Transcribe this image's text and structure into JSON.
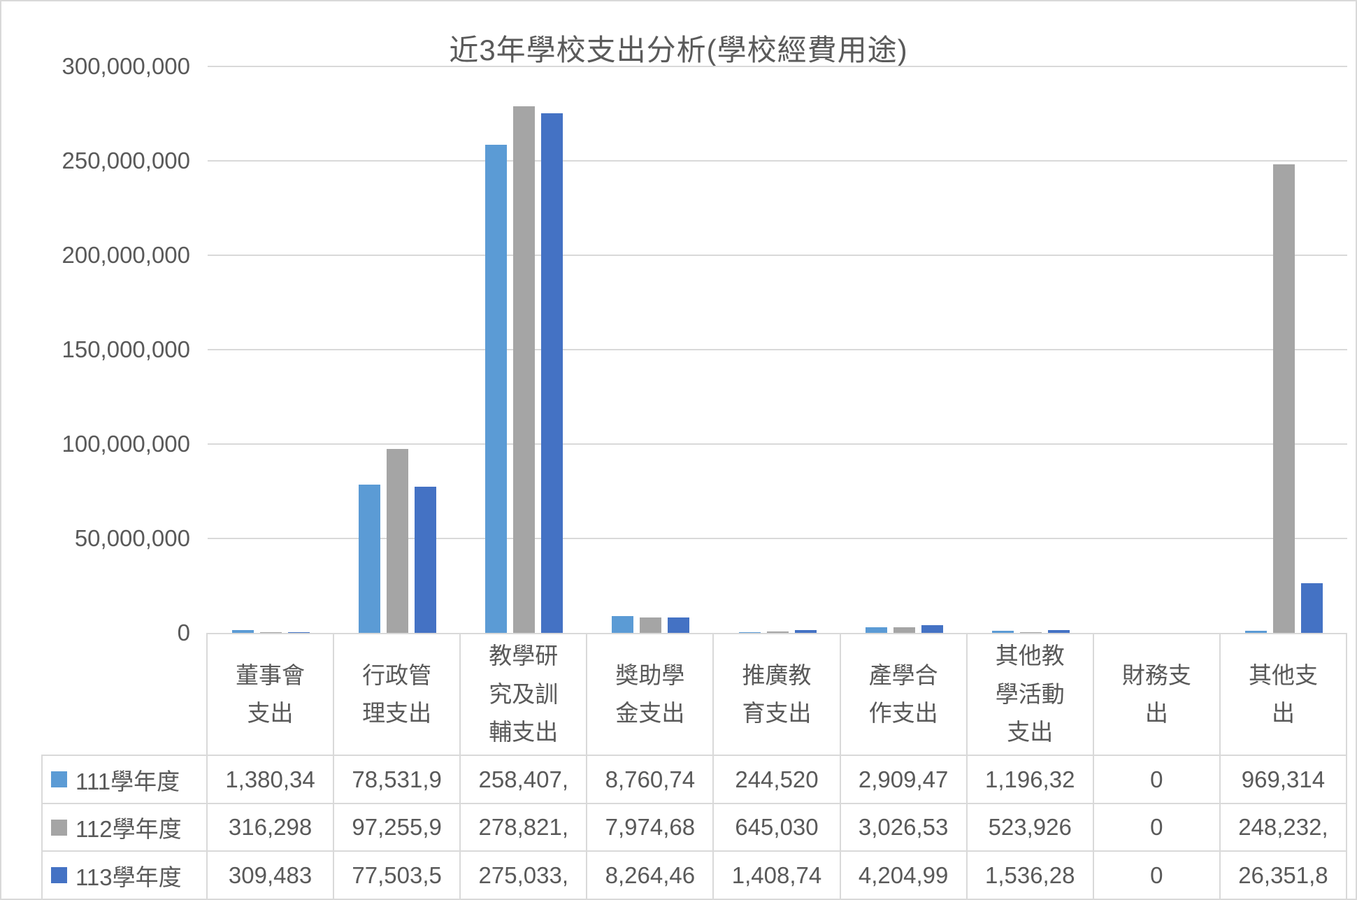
{
  "title": "近3年學校支出分析(學校經費用途)",
  "colors": {
    "series_111": "#5B9BD5",
    "series_112": "#A5A5A5",
    "series_113": "#4472C4",
    "text": "#595959",
    "gridline": "#D9D9D9",
    "background": "#FFFFFF"
  },
  "chart_data": {
    "type": "bar",
    "title": "近3年學校支出分析(學校經費用途)",
    "grid": true,
    "legend_position": "table-left",
    "y_axis": {
      "min": 0,
      "max": 300000000,
      "tick_step": 50000000,
      "tick_labels": [
        "300,000,000",
        "250,000,000",
        "200,000,000",
        "150,000,000",
        "100,000,000",
        "50,000,000",
        "0"
      ]
    },
    "categories": [
      "董事會支出",
      "行政管理支出",
      "教學研究及訓輔支出",
      "獎助學金支出",
      "推廣教育支出",
      "產學合作支出",
      "其他教學活動支出",
      "財務支出",
      "其他支出"
    ],
    "category_display": [
      "董事會\n支出",
      "行政管\n理支出",
      "教學研\n究及訓\n輔支出",
      "獎助學\n金支出",
      "推廣教\n育支出",
      "產學合\n作支出",
      "其他教\n學活動\n支出",
      "財務支\n出",
      "其他支\n出"
    ],
    "series": [
      {
        "name": "111學年度",
        "color": "#5B9BD5",
        "values": [
          1380340,
          78531900,
          258407000,
          8760740,
          244520,
          2909470,
          1196320,
          0,
          969314
        ],
        "display": [
          "1,380,34",
          "78,531,9",
          "258,407,",
          "8,760,74",
          "244,520",
          "2,909,47",
          "1,196,32",
          "0",
          "969,314"
        ]
      },
      {
        "name": "112學年度",
        "color": "#A5A5A5",
        "values": [
          316298,
          97255900,
          278821000,
          7974680,
          645030,
          3026530,
          523926,
          0,
          248232000
        ],
        "display": [
          "316,298",
          "97,255,9",
          "278,821,",
          "7,974,68",
          "645,030",
          "3,026,53",
          "523,926",
          "0",
          "248,232,"
        ]
      },
      {
        "name": "113學年度",
        "color": "#4472C4",
        "values": [
          309483,
          77503500,
          275033000,
          8264460,
          1408740,
          4204990,
          1536280,
          0,
          26351800
        ],
        "display": [
          "309,483",
          "77,503,5",
          "275,033,",
          "8,264,46",
          "1,408,74",
          "4,204,99",
          "1,536,28",
          "0",
          "26,351,8"
        ]
      }
    ]
  }
}
